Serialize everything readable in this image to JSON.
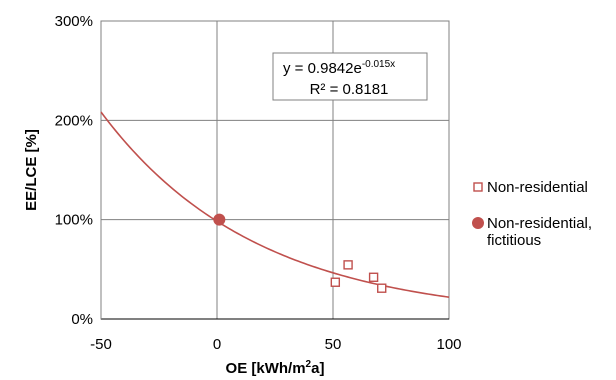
{
  "colors": {
    "trendline": "#C0504D",
    "series_marker": "#C0504D",
    "grid": "#808080",
    "axis": "#000000"
  },
  "equation": {
    "line1_main": "y = 0.9842e",
    "line1_exp": "-0.015x",
    "line2": "R² = 0.8181"
  },
  "chart_data": {
    "type": "scatter",
    "xlabel_main": "OE [kWh/m",
    "xlabel_sup": "2",
    "xlabel_end": "a]",
    "ylabel": "EE/LCE [%]",
    "xlim": [
      -50,
      100
    ],
    "ylim": [
      0,
      300
    ],
    "x_ticks": [
      -50,
      0,
      50,
      100
    ],
    "x_tick_labels": [
      "-50",
      "0",
      "50",
      "100"
    ],
    "y_ticks": [
      0,
      100,
      200,
      300
    ],
    "y_tick_labels": [
      "0%",
      "100%",
      "200%",
      "300%"
    ],
    "grid": true,
    "legend_position": "right",
    "series": [
      {
        "name": "Non-residential",
        "marker": "hollow-square",
        "points": [
          [
            51,
            37
          ],
          [
            56.5,
            54.5
          ],
          [
            67.5,
            42
          ],
          [
            71,
            31
          ]
        ]
      },
      {
        "name_line1": "Non-residential,",
        "name_line2": "fictitious",
        "marker": "filled-circle",
        "points": [
          [
            1,
            100
          ]
        ]
      }
    ],
    "trendline": {
      "type": "exponential",
      "a": 0.9842,
      "b": -0.015,
      "x_range": [
        -50,
        100
      ]
    }
  }
}
